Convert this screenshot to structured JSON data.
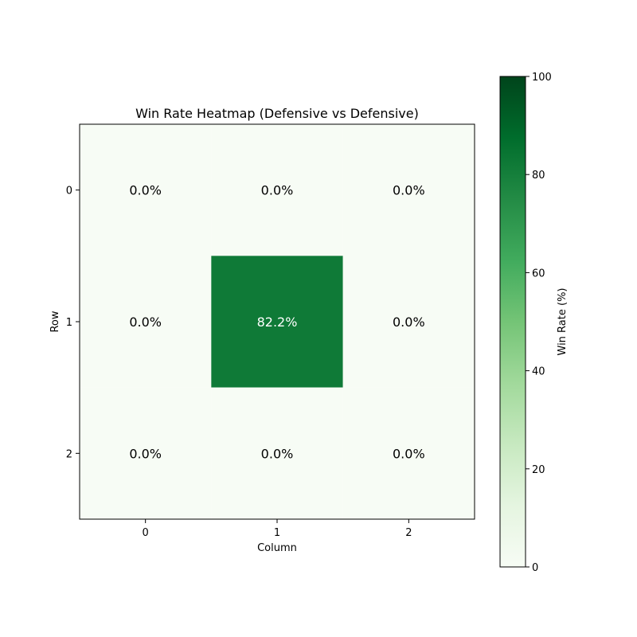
{
  "chart_data": {
    "type": "heatmap",
    "title": "Win Rate Heatmap (Defensive vs Defensive)",
    "xlabel": "Column",
    "ylabel": "Row",
    "x_categories": [
      "0",
      "1",
      "2"
    ],
    "y_categories": [
      "0",
      "1",
      "2"
    ],
    "values": [
      [
        0.0,
        0.0,
        0.0
      ],
      [
        0.0,
        82.2,
        0.0
      ],
      [
        0.0,
        0.0,
        0.0
      ]
    ],
    "cell_labels": [
      [
        "0.0%",
        "0.0%",
        "0.0%"
      ],
      [
        "0.0%",
        "82.2%",
        "0.0%"
      ],
      [
        "0.0%",
        "0.0%",
        "0.0%"
      ]
    ],
    "colorbar": {
      "label": "Win Rate (%)",
      "range": [
        0,
        100
      ],
      "ticks": [
        "0",
        "20",
        "40",
        "60",
        "80",
        "100"
      ],
      "colormap": "Greens",
      "color_low": "#f7fcf5",
      "color_high": "#00441b"
    },
    "grid": false
  }
}
